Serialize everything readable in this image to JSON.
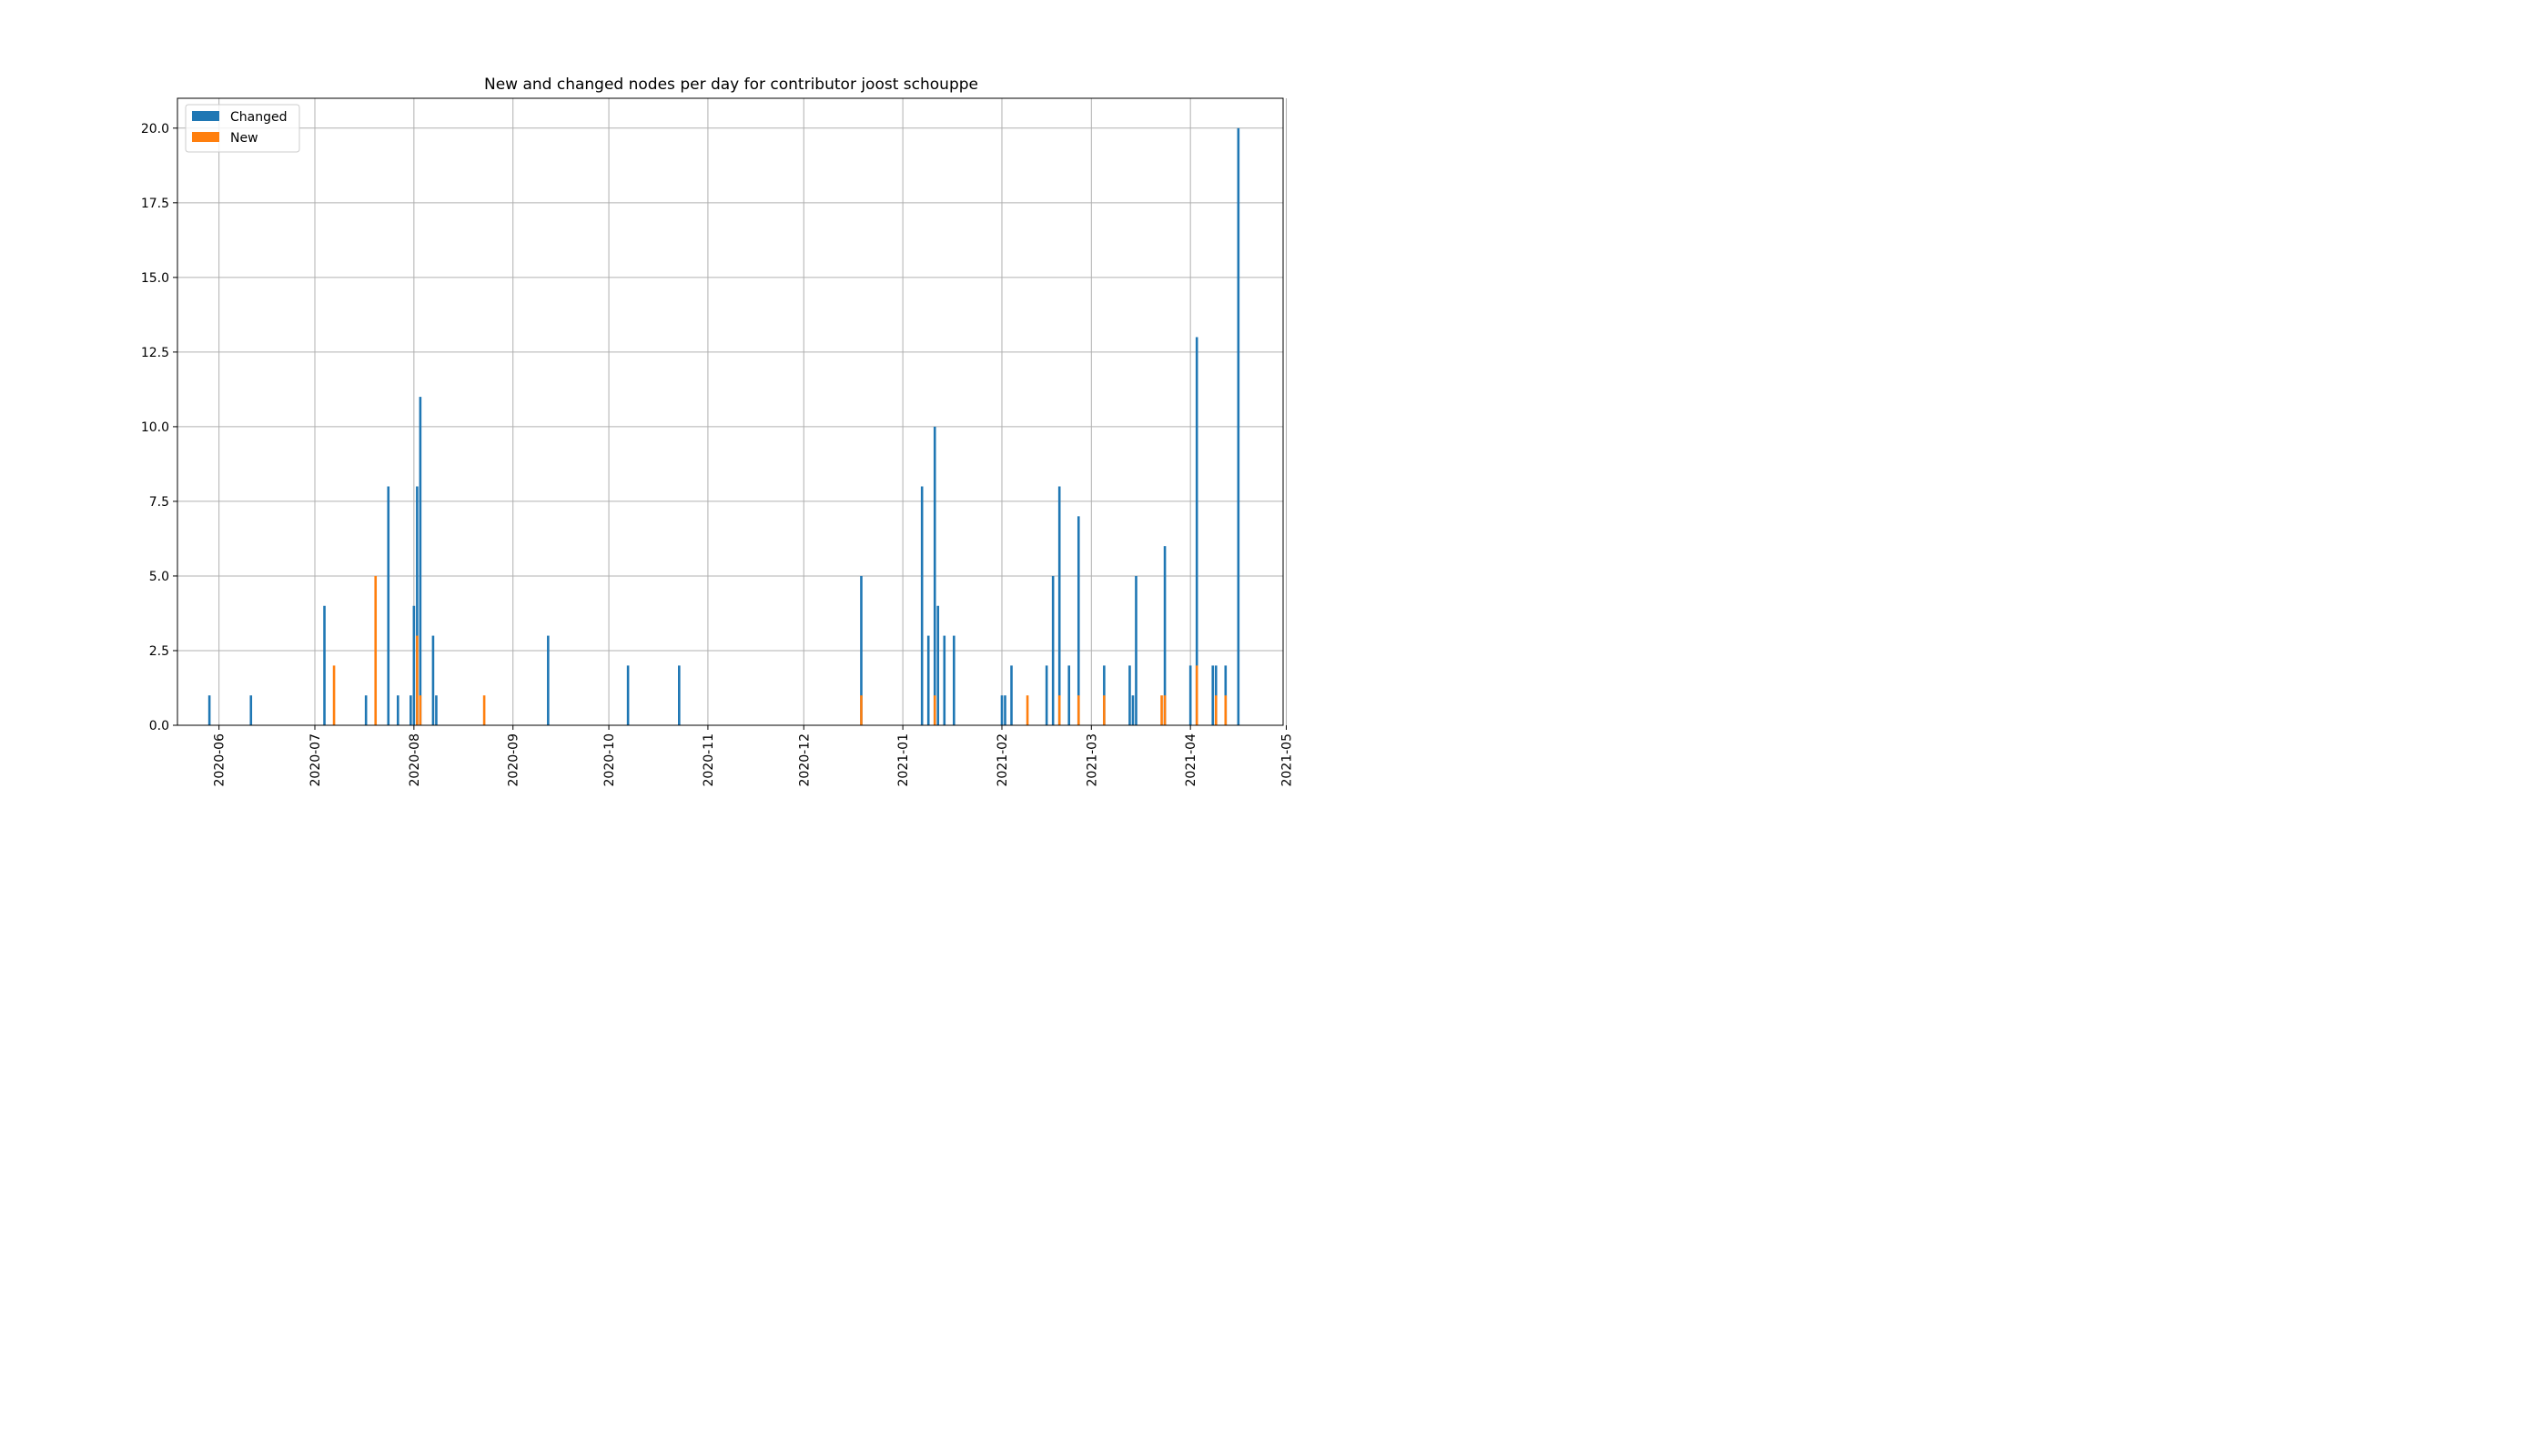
{
  "chart_data": {
    "type": "bar",
    "title": "New and changed nodes per day for contributor joost schouppe",
    "xlabel": "",
    "ylabel": "",
    "x_range": [
      "2020-05-19",
      "2021-04-30"
    ],
    "ylim": [
      0,
      21
    ],
    "grid": true,
    "legend_position": "upper left",
    "x_tick_labels": [
      "2020-06",
      "2020-07",
      "2020-08",
      "2020-09",
      "2020-10",
      "2020-11",
      "2020-12",
      "2021-01",
      "2021-02",
      "2021-03",
      "2021-04",
      "2021-05"
    ],
    "y_tick_labels": [
      "0.0",
      "2.5",
      "5.0",
      "7.5",
      "10.0",
      "12.5",
      "15.0",
      "17.5",
      "20.0"
    ],
    "y_tick_values": [
      0,
      2.5,
      5,
      7.5,
      10,
      12.5,
      15,
      17.5,
      20
    ],
    "series": [
      {
        "name": "Changed",
        "color": "#1f77b4",
        "points": [
          [
            "2020-05-29",
            1
          ],
          [
            "2020-06-11",
            1
          ],
          [
            "2020-07-04",
            4
          ],
          [
            "2020-07-17",
            1
          ],
          [
            "2020-07-24",
            8
          ],
          [
            "2020-07-27",
            1
          ],
          [
            "2020-07-31",
            1
          ],
          [
            "2020-08-01",
            4
          ],
          [
            "2020-08-02",
            8
          ],
          [
            "2020-08-03",
            11
          ],
          [
            "2020-08-07",
            3
          ],
          [
            "2020-08-08",
            1
          ],
          [
            "2020-09-12",
            3
          ],
          [
            "2020-10-07",
            2
          ],
          [
            "2020-10-23",
            2
          ],
          [
            "2020-12-19",
            5
          ],
          [
            "2021-01-07",
            8
          ],
          [
            "2021-01-09",
            3
          ],
          [
            "2021-01-11",
            10
          ],
          [
            "2021-01-12",
            4
          ],
          [
            "2021-01-14",
            3
          ],
          [
            "2021-01-17",
            3
          ],
          [
            "2021-02-01",
            1
          ],
          [
            "2021-02-02",
            1
          ],
          [
            "2021-02-04",
            2
          ],
          [
            "2021-02-15",
            2
          ],
          [
            "2021-02-17",
            5
          ],
          [
            "2021-02-19",
            8
          ],
          [
            "2021-02-22",
            2
          ],
          [
            "2021-02-25",
            7
          ],
          [
            "2021-03-05",
            2
          ],
          [
            "2021-03-13",
            2
          ],
          [
            "2021-03-14",
            1
          ],
          [
            "2021-03-15",
            5
          ],
          [
            "2021-03-24",
            6
          ],
          [
            "2021-04-01",
            2
          ],
          [
            "2021-04-03",
            13
          ],
          [
            "2021-04-08",
            2
          ],
          [
            "2021-04-09",
            2
          ],
          [
            "2021-04-12",
            2
          ],
          [
            "2021-04-16",
            20
          ]
        ]
      },
      {
        "name": "New",
        "color": "#ff7f0e",
        "points": [
          [
            "2020-07-07",
            2
          ],
          [
            "2020-07-20",
            5
          ],
          [
            "2020-08-02",
            3
          ],
          [
            "2020-08-03",
            1
          ],
          [
            "2020-08-23",
            1
          ],
          [
            "2020-12-19",
            1
          ],
          [
            "2021-01-11",
            1
          ],
          [
            "2021-02-09",
            1
          ],
          [
            "2021-02-19",
            1
          ],
          [
            "2021-02-25",
            1
          ],
          [
            "2021-03-05",
            1
          ],
          [
            "2021-03-23",
            1
          ],
          [
            "2021-03-24",
            1
          ],
          [
            "2021-04-03",
            2
          ],
          [
            "2021-04-09",
            1
          ],
          [
            "2021-04-12",
            1
          ]
        ]
      }
    ]
  }
}
